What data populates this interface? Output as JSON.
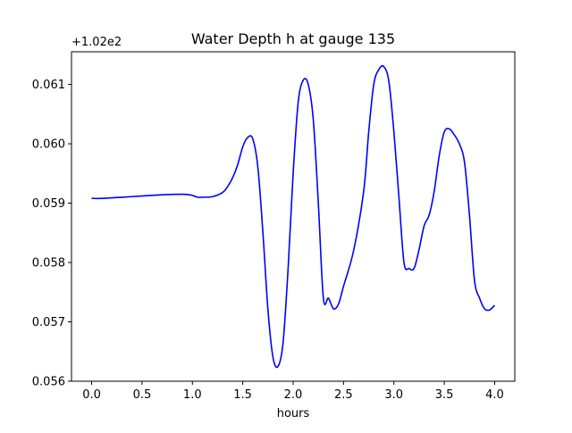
{
  "chart_data": {
    "type": "line",
    "title": "Water Depth h at gauge 135",
    "xlabel": "hours",
    "ylabel": "",
    "offset_text": "+1.02e2",
    "xlim": [
      -0.2,
      4.2
    ],
    "ylim": [
      0.056,
      0.06155
    ],
    "xticks": [
      0.0,
      0.5,
      1.0,
      1.5,
      2.0,
      2.5,
      3.0,
      3.5,
      4.0
    ],
    "xtick_labels": [
      "0.0",
      "0.5",
      "1.0",
      "1.5",
      "2.0",
      "2.5",
      "3.0",
      "3.5",
      "4.0"
    ],
    "yticks": [
      0.056,
      0.057,
      0.058,
      0.059,
      0.06,
      0.061
    ],
    "ytick_labels": [
      "0.056",
      "0.057",
      "0.058",
      "0.059",
      "0.060",
      "0.061"
    ],
    "grid": false,
    "series": [
      {
        "color": "#0000ff",
        "x": [
          0.0,
          0.1,
          0.3,
          0.5,
          0.7,
          0.9,
          0.97,
          1.0,
          1.05,
          1.1,
          1.2,
          1.3,
          1.35,
          1.4,
          1.45,
          1.5,
          1.55,
          1.6,
          1.65,
          1.7,
          1.75,
          1.8,
          1.85,
          1.9,
          1.95,
          2.0,
          2.05,
          2.1,
          2.15,
          2.2,
          2.25,
          2.3,
          2.35,
          2.4,
          2.45,
          2.5,
          2.6,
          2.7,
          2.75,
          2.8,
          2.85,
          2.9,
          2.95,
          3.0,
          3.05,
          3.1,
          3.15,
          3.2,
          3.25,
          3.3,
          3.35,
          3.4,
          3.45,
          3.5,
          3.55,
          3.6,
          3.65,
          3.7,
          3.75,
          3.8,
          3.85,
          3.9,
          3.95,
          4.0
        ],
        "y": [
          0.05908,
          0.05908,
          0.0591,
          0.05912,
          0.05914,
          0.05915,
          0.05914,
          0.05913,
          0.0591,
          0.0591,
          0.05911,
          0.05918,
          0.05928,
          0.05943,
          0.05965,
          0.05995,
          0.06011,
          0.06008,
          0.0596,
          0.0585,
          0.0572,
          0.0564,
          0.05625,
          0.05665,
          0.0579,
          0.0595,
          0.0607,
          0.06107,
          0.061,
          0.0604,
          0.059,
          0.0574,
          0.0574,
          0.05722,
          0.0573,
          0.0576,
          0.0582,
          0.0592,
          0.0602,
          0.061,
          0.06125,
          0.0613,
          0.06105,
          0.0602,
          0.0591,
          0.058,
          0.0579,
          0.0579,
          0.05822,
          0.05862,
          0.0588,
          0.0592,
          0.0598,
          0.0602,
          0.06025,
          0.06015,
          0.06,
          0.0597,
          0.0588,
          0.0577,
          0.0574,
          0.05722,
          0.0572,
          0.05728
        ]
      }
    ]
  }
}
